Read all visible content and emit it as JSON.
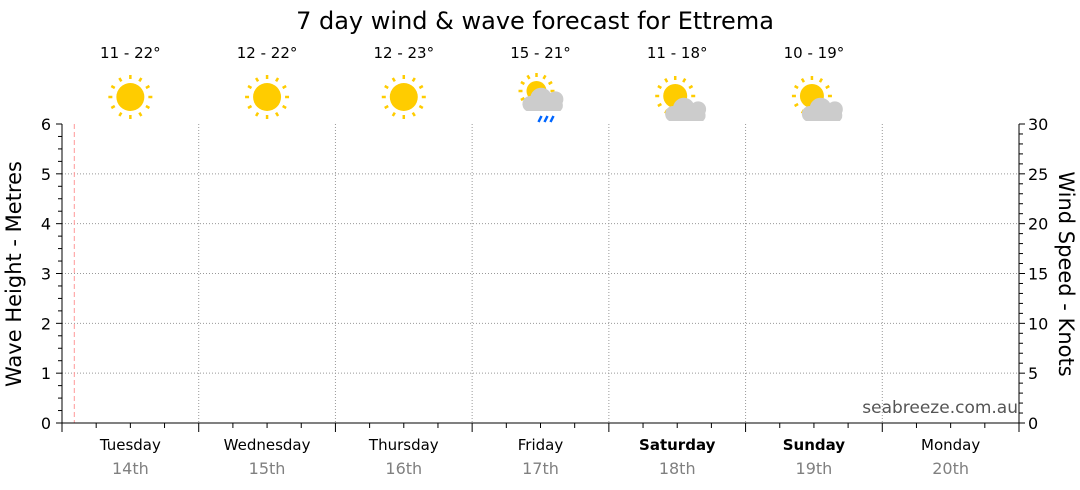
{
  "chart_data": {
    "type": "line",
    "title": "7 day wind & wave forecast for Ettrema",
    "ylabel_left": "Wave Height - Metres",
    "ylabel_right": "Wind Speed - Knots",
    "ylim_left": [
      0,
      6
    ],
    "ylim_right": [
      0,
      30
    ],
    "yticks_left": [
      "0",
      "1",
      "2",
      "3",
      "4",
      "5",
      "6"
    ],
    "yticks_right": [
      "0",
      "5",
      "10",
      "15",
      "20",
      "25",
      "30"
    ],
    "grid": true,
    "watermark": "seabreeze.com.au",
    "current_time_marker_day_fraction": 0.09,
    "days": [
      {
        "name": "Tuesday",
        "date": "14th",
        "temp": "11 - 22°",
        "icon": "sunny-icon",
        "bold": false
      },
      {
        "name": "Wednesday",
        "date": "15th",
        "temp": "12 - 22°",
        "icon": "sunny-icon",
        "bold": false
      },
      {
        "name": "Thursday",
        "date": "16th",
        "temp": "12 - 23°",
        "icon": "sunny-icon",
        "bold": false
      },
      {
        "name": "Friday",
        "date": "17th",
        "temp": "15 - 21°",
        "icon": "showers-icon",
        "bold": false
      },
      {
        "name": "Saturday",
        "date": "18th",
        "temp": "11 - 18°",
        "icon": "partly-cloudy-icon",
        "bold": true
      },
      {
        "name": "Sunday",
        "date": "19th",
        "temp": "10 - 19°",
        "icon": "partly-cloudy-icon",
        "bold": true
      },
      {
        "name": "Monday",
        "date": "20th",
        "temp": "",
        "icon": "",
        "bold": false
      }
    ],
    "series": []
  },
  "colors": {
    "sun": "#ffcc00",
    "cloud": "#cccccc",
    "rain": "#0066ff",
    "now_line": "#ff9999",
    "grid": "#999999",
    "date_text": "#808080"
  }
}
